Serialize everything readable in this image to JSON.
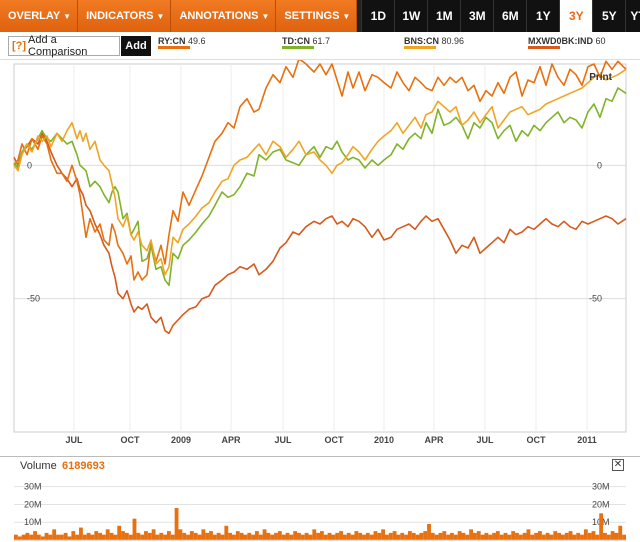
{
  "toolbar": {
    "menus": [
      {
        "label": "OVERLAY"
      },
      {
        "label": "INDICATORS"
      },
      {
        "label": "ANNOTATIONS"
      },
      {
        "label": "SETTINGS"
      }
    ],
    "ranges": [
      "1D",
      "1W",
      "1M",
      "3M",
      "6M",
      "1Y",
      "3Y",
      "5Y",
      "YTD"
    ],
    "active_range": "3Y"
  },
  "compare": {
    "help_glyph": "[?]",
    "input_label": "Add a Comparison",
    "add_label": "Add"
  },
  "legend": [
    {
      "symbol": "RY:CN",
      "value": "49.6",
      "color": "#e8700f"
    },
    {
      "symbol": "TD:CN",
      "value": "61.7",
      "color": "#7fb32a"
    },
    {
      "symbol": "BNS:CN",
      "value": "80.96",
      "color": "#f0a424"
    },
    {
      "symbol": "MXWD0BK:IND",
      "value": "60",
      "color": "#d55a1e"
    }
  ],
  "print_label": "Print",
  "volume": {
    "label": "Volume",
    "value": "6189693"
  },
  "chart_data": [
    {
      "type": "line",
      "x_tick_labels": [
        "JUL",
        "OCT",
        "2009",
        "APR",
        "JUL",
        "OCT",
        "2010",
        "APR",
        "JUL",
        "OCT",
        "2011"
      ],
      "y_tick_labels": [
        "0",
        "-50"
      ],
      "ylim": [
        -100,
        38
      ],
      "grid": true,
      "series": [
        {
          "name": "RY:CN",
          "color": "#e8700f",
          "x": [
            0,
            4,
            8,
            13,
            18,
            24,
            28,
            33,
            37,
            43,
            48,
            53,
            58,
            63,
            66,
            69,
            72,
            76,
            81,
            86,
            90,
            95,
            98,
            101,
            104,
            109,
            113,
            117,
            120,
            124,
            128,
            133,
            137,
            142,
            147,
            151,
            155,
            159,
            164,
            169,
            175,
            182,
            188,
            195,
            201,
            208,
            214,
            220,
            226,
            233,
            240,
            245,
            252,
            259,
            266,
            272,
            279,
            285,
            292,
            300,
            306,
            312,
            318,
            323,
            328,
            334,
            339,
            345,
            351,
            358,
            364,
            370,
            377,
            383,
            389,
            395,
            401,
            407,
            412,
            418,
            424,
            430,
            436,
            442,
            448,
            454,
            460,
            466,
            472,
            478,
            484,
            490,
            496,
            502,
            508,
            514,
            520,
            526,
            532,
            538,
            544,
            550,
            556,
            562,
            568,
            574,
            580,
            586,
            592,
            598,
            604,
            612
          ],
          "y": [
            0,
            2,
            8,
            4,
            10,
            6,
            11,
            8,
            2,
            -3,
            -3,
            -6,
            0,
            -6,
            -11,
            -19,
            -27,
            -20,
            -25,
            -22,
            -28,
            -30,
            -22,
            -25,
            -30,
            -33,
            -37,
            -34,
            -43,
            -40,
            -43,
            -41,
            -29,
            -36,
            -30,
            -37,
            -26,
            -17,
            -21,
            -10,
            -15,
            -9,
            -4,
            3,
            9,
            12,
            16,
            14,
            22,
            25,
            20,
            21,
            29,
            34,
            31,
            37,
            33,
            40,
            38,
            35,
            38,
            34,
            38,
            32,
            26,
            35,
            29,
            35,
            28,
            34,
            33,
            31,
            29,
            35,
            31,
            28,
            33,
            31,
            29,
            28,
            33,
            30,
            33,
            31,
            33,
            28,
            30,
            24,
            28,
            26,
            31,
            27,
            33,
            35,
            26,
            32,
            31,
            37,
            30,
            38,
            33,
            30,
            36,
            34,
            30,
            37,
            38,
            33,
            39,
            36,
            39,
            36
          ]
        },
        {
          "name": "TD:CN",
          "color": "#7fb32a",
          "x": [
            0,
            4,
            8,
            13,
            18,
            24,
            28,
            33,
            37,
            43,
            48,
            53,
            58,
            63,
            66,
            69,
            72,
            76,
            81,
            86,
            90,
            95,
            98,
            101,
            104,
            109,
            113,
            117,
            120,
            124,
            128,
            133,
            137,
            142,
            147,
            151,
            155,
            159,
            164,
            169,
            175,
            182,
            188,
            195,
            201,
            208,
            214,
            220,
            226,
            233,
            240,
            245,
            252,
            259,
            266,
            272,
            279,
            285,
            292,
            300,
            306,
            312,
            318,
            323,
            328,
            334,
            339,
            345,
            351,
            358,
            364,
            370,
            377,
            383,
            389,
            395,
            401,
            407,
            412,
            418,
            424,
            430,
            436,
            442,
            448,
            454,
            460,
            466,
            472,
            478,
            484,
            490,
            496,
            502,
            508,
            514,
            520,
            526,
            532,
            538,
            544,
            550,
            556,
            562,
            568,
            574,
            580,
            586,
            592,
            598,
            604,
            612
          ],
          "y": [
            1,
            -1,
            5,
            8,
            6,
            10,
            13,
            10,
            9,
            12,
            10,
            8,
            9,
            4,
            0,
            -1,
            -2,
            -8,
            -6,
            -8,
            -11,
            -14,
            -10,
            -8,
            -10,
            -20,
            -18,
            -26,
            -24,
            -21,
            -36,
            -35,
            -30,
            -39,
            -38,
            -43,
            -45,
            -33,
            -35,
            -30,
            -28,
            -25,
            -22,
            -19,
            -15,
            -10,
            -12,
            -11,
            -8,
            -3,
            -4,
            4,
            2,
            5,
            6,
            2,
            1,
            0,
            4,
            7,
            3,
            7,
            6,
            9,
            5,
            2,
            3,
            2,
            -1,
            2,
            0,
            2,
            4,
            8,
            6,
            10,
            12,
            10,
            16,
            12,
            21,
            15,
            16,
            18,
            15,
            10,
            16,
            14,
            18,
            16,
            10,
            13,
            15,
            9,
            13,
            11,
            15,
            13,
            16,
            18,
            20,
            16,
            18,
            17,
            14,
            20,
            23,
            18,
            25,
            24,
            29,
            27
          ]
        },
        {
          "name": "BNS:CN",
          "color": "#f0a424",
          "x": [
            0,
            4,
            8,
            13,
            18,
            24,
            28,
            33,
            37,
            43,
            48,
            53,
            58,
            63,
            66,
            69,
            72,
            76,
            81,
            86,
            90,
            95,
            98,
            101,
            104,
            109,
            113,
            117,
            120,
            124,
            128,
            133,
            137,
            142,
            147,
            151,
            155,
            159,
            164,
            169,
            175,
            182,
            188,
            195,
            201,
            208,
            214,
            220,
            226,
            233,
            240,
            245,
            252,
            259,
            266,
            272,
            279,
            285,
            292,
            300,
            306,
            312,
            318,
            323,
            328,
            334,
            339,
            345,
            351,
            358,
            364,
            370,
            377,
            383,
            389,
            395,
            401,
            407,
            412,
            418,
            424,
            430,
            436,
            442,
            448,
            454,
            460,
            466,
            472,
            478,
            484,
            490,
            496,
            502,
            508,
            514,
            520,
            526,
            532,
            538,
            544,
            550,
            556,
            562,
            568,
            574,
            580,
            586,
            592,
            598,
            604,
            612
          ],
          "y": [
            0,
            -2,
            4,
            8,
            5,
            11,
            9,
            11,
            7,
            12,
            9,
            13,
            16,
            10,
            13,
            9,
            12,
            6,
            9,
            2,
            0,
            -2,
            -7,
            -12,
            -20,
            -23,
            -19,
            -26,
            -28,
            -25,
            -30,
            -32,
            -28,
            -37,
            -35,
            -41,
            -38,
            -27,
            -29,
            -24,
            -22,
            -19,
            -16,
            -14,
            -10,
            -6,
            -5,
            0,
            2,
            3,
            6,
            8,
            4,
            9,
            7,
            3,
            6,
            9,
            4,
            5,
            2,
            0,
            -3,
            0,
            1,
            4,
            7,
            5,
            2,
            6,
            9,
            11,
            13,
            16,
            12,
            15,
            18,
            14,
            19,
            20,
            24,
            22,
            20,
            22,
            15,
            17,
            20,
            16,
            19,
            22,
            14,
            17,
            20,
            21,
            22,
            19,
            20,
            21,
            23,
            24,
            25,
            26,
            27,
            28,
            29,
            31,
            33,
            34,
            32,
            33,
            34,
            36
          ]
        },
        {
          "name": "MXWD0BK:IND",
          "color": "#d55a1e",
          "x": [
            0,
            4,
            8,
            13,
            18,
            24,
            28,
            33,
            37,
            43,
            48,
            53,
            58,
            63,
            66,
            69,
            72,
            76,
            81,
            86,
            90,
            95,
            98,
            101,
            104,
            109,
            113,
            117,
            120,
            124,
            128,
            133,
            137,
            142,
            147,
            151,
            155,
            159,
            164,
            169,
            175,
            182,
            188,
            195,
            201,
            208,
            214,
            220,
            226,
            233,
            240,
            245,
            252,
            259,
            266,
            272,
            279,
            285,
            292,
            300,
            306,
            312,
            318,
            323,
            328,
            334,
            339,
            345,
            351,
            358,
            364,
            370,
            377,
            383,
            389,
            395,
            401,
            407,
            412,
            418,
            424,
            430,
            436,
            442,
            448,
            454,
            460,
            466,
            472,
            478,
            484,
            490,
            496,
            502,
            508,
            514,
            520,
            526,
            532,
            538,
            544,
            550,
            556,
            562,
            568,
            574,
            580,
            586,
            592,
            598,
            604,
            612
          ],
          "y": [
            3,
            0,
            5,
            7,
            10,
            8,
            12,
            9,
            5,
            0,
            -3,
            -5,
            -8,
            -5,
            -9,
            -11,
            -15,
            -17,
            -22,
            -26,
            -30,
            -33,
            -38,
            -42,
            -48,
            -50,
            -47,
            -52,
            -55,
            -53,
            -54,
            -52,
            -57,
            -59,
            -57,
            -62,
            -63,
            -60,
            -58,
            -56,
            -54,
            -53,
            -50,
            -49,
            -45,
            -43,
            -41,
            -40,
            -38,
            -39,
            -37,
            -41,
            -39,
            -36,
            -31,
            -29,
            -25,
            -26,
            -23,
            -21,
            -22,
            -20,
            -19,
            -22,
            -21,
            -23,
            -20,
            -21,
            -23,
            -27,
            -24,
            -28,
            -27,
            -24,
            -23,
            -22,
            -24,
            -21,
            -19,
            -21,
            -20,
            -24,
            -28,
            -33,
            -30,
            -31,
            -27,
            -33,
            -31,
            -29,
            -27,
            -29,
            -24,
            -26,
            -25,
            -23,
            -24,
            -22,
            -20,
            -22,
            -23,
            -21,
            -23,
            -24,
            -21,
            -22,
            -21,
            -20,
            -19,
            -20,
            -22,
            -20
          ]
        }
      ]
    },
    {
      "type": "bar",
      "title": "Volume",
      "y_tick_labels": [
        "30M",
        "20M",
        "10M"
      ],
      "ylim": [
        0,
        36
      ],
      "values": [
        3,
        2,
        3,
        4,
        3,
        5,
        3,
        2,
        4,
        3,
        6,
        3,
        3,
        4,
        2,
        5,
        3,
        7,
        3,
        4,
        3,
        5,
        4,
        3,
        6,
        4,
        3,
        8,
        5,
        4,
        3,
        12,
        4,
        3,
        5,
        4,
        6,
        3,
        4,
        3,
        5,
        3,
        18,
        6,
        4,
        3,
        5,
        4,
        3,
        6,
        4,
        5,
        3,
        4,
        3,
        8,
        4,
        3,
        5,
        4,
        3,
        4,
        3,
        5,
        3,
        6,
        4,
        3,
        4,
        5,
        3,
        4,
        3,
        5,
        4,
        3,
        4,
        3,
        6,
        4,
        5,
        3,
        4,
        3,
        4,
        5,
        3,
        4,
        3,
        5,
        4,
        3,
        4,
        3,
        5,
        4,
        6,
        3,
        4,
        5,
        3,
        4,
        3,
        5,
        4,
        3,
        4,
        5,
        9,
        4,
        3,
        4,
        5,
        3,
        4,
        3,
        5,
        4,
        3,
        6,
        4,
        5,
        3,
        4,
        3,
        4,
        5,
        3,
        4,
        3,
        5,
        4,
        3,
        4,
        6,
        3,
        4,
        5,
        3,
        4,
        3,
        5,
        4,
        3,
        4,
        5,
        3,
        4,
        3,
        6,
        4,
        5,
        3,
        15,
        4,
        3,
        5,
        4,
        8,
        3
      ]
    }
  ]
}
